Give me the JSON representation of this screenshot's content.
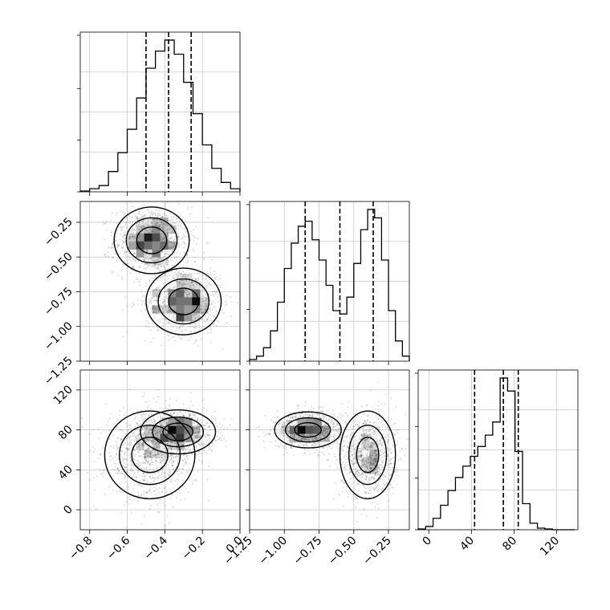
{
  "chart_data": [
    {
      "type": "histogram",
      "panel": "param-1-marginal",
      "x_range": [
        -0.85,
        0.0
      ],
      "x_ticks": [
        -0.8,
        -0.6,
        -0.4,
        -0.2,
        0.0
      ],
      "x_tick_labels": [
        "−0.8",
        "−0.6",
        "−0.4",
        "−0.2",
        "0.0"
      ],
      "bin_edges": [
        -0.85,
        -0.8,
        -0.75,
        -0.7,
        -0.65,
        -0.6,
        -0.55,
        -0.5,
        -0.45,
        -0.4,
        -0.35,
        -0.3,
        -0.25,
        -0.2,
        -0.15,
        -0.1,
        -0.05,
        0.0
      ],
      "counts": [
        0.005,
        0.02,
        0.04,
        0.13,
        0.25,
        0.4,
        0.6,
        0.79,
        0.9,
        0.97,
        0.88,
        0.7,
        0.5,
        0.3,
        0.15,
        0.06,
        0.02
      ],
      "quantiles": [
        -0.5,
        -0.38,
        -0.26
      ],
      "grid": true
    },
    {
      "type": "histogram",
      "panel": "param-2-marginal",
      "x_range": [
        -1.25,
        -0.1
      ],
      "x_ticks": [
        -1.25,
        -1.0,
        -0.75,
        -0.5,
        -0.25
      ],
      "x_tick_labels": [
        "−1.25",
        "−1.00",
        "−0.75",
        "−0.50",
        "−0.25"
      ],
      "bin_edges": [
        -1.25,
        -1.2,
        -1.15,
        -1.1,
        -1.05,
        -1.0,
        -0.95,
        -0.9,
        -0.85,
        -0.8,
        -0.75,
        -0.7,
        -0.65,
        -0.6,
        -0.55,
        -0.5,
        -0.45,
        -0.4,
        -0.35,
        -0.3,
        -0.25,
        -0.2,
        -0.15,
        -0.1
      ],
      "counts": [
        0.01,
        0.03,
        0.08,
        0.18,
        0.35,
        0.55,
        0.7,
        0.8,
        0.83,
        0.72,
        0.6,
        0.45,
        0.3,
        0.28,
        0.38,
        0.58,
        0.78,
        0.9,
        0.85,
        0.6,
        0.3,
        0.12,
        0.03
      ],
      "quantiles": [
        -0.85,
        -0.6,
        -0.36
      ],
      "grid": true
    },
    {
      "type": "histogram",
      "panel": "param-3-marginal",
      "x_range": [
        -10,
        140
      ],
      "x_ticks": [
        0,
        40,
        80,
        120
      ],
      "x_tick_labels": [
        "0",
        "40",
        "80",
        "120"
      ],
      "bin_edges": [
        -10,
        -3,
        4,
        11,
        18,
        25,
        32,
        39,
        46,
        53,
        60,
        67,
        74,
        81,
        88,
        95,
        102,
        109,
        116,
        123,
        130,
        137
      ],
      "counts": [
        0.005,
        0.02,
        0.07,
        0.15,
        0.24,
        0.32,
        0.39,
        0.45,
        0.51,
        0.58,
        0.66,
        0.93,
        0.85,
        0.48,
        0.16,
        0.04,
        0.01,
        0.005,
        0.0,
        0.0,
        0.0
      ],
      "quantiles": [
        43,
        70,
        84
      ],
      "grid": true
    },
    {
      "type": "scatter",
      "panel": "param-1-vs-param-2",
      "x_range": [
        -0.85,
        0.0
      ],
      "y_range": [
        -1.25,
        -0.1
      ],
      "y_ticks": [
        -1.25,
        -1.0,
        -0.75,
        -0.5,
        -0.25
      ],
      "y_tick_labels": [
        "−1.25",
        "−1.00",
        "−0.75",
        "−0.50",
        "−0.25"
      ],
      "clusters": [
        {
          "center": [
            -0.47,
            -0.38
          ],
          "spread": [
            0.1,
            0.12
          ]
        },
        {
          "center": [
            -0.3,
            -0.82
          ],
          "spread": [
            0.1,
            0.12
          ]
        }
      ],
      "contours": "density levels with greyscale 2D histogram",
      "grid": true
    },
    {
      "type": "scatter",
      "panel": "param-1-vs-param-3",
      "x_range": [
        -0.85,
        0.0
      ],
      "y_range": [
        -20,
        140
      ],
      "y_ticks": [
        0,
        40,
        80,
        120
      ],
      "y_tick_labels": [
        "0",
        "40",
        "80",
        "120"
      ],
      "clusters": [
        {
          "center": [
            -0.33,
            78
          ],
          "spread": [
            0.1,
            11
          ]
        },
        {
          "center": [
            -0.48,
            55
          ],
          "spread": [
            0.12,
            22
          ]
        }
      ],
      "contours": "density levels with greyscale 2D histogram",
      "grid": true
    },
    {
      "type": "scatter",
      "panel": "param-2-vs-param-3",
      "x_range": [
        -1.25,
        -0.1
      ],
      "y_range": [
        -20,
        140
      ],
      "clusters": [
        {
          "center": [
            -0.83,
            80
          ],
          "spread": [
            0.12,
            9
          ]
        },
        {
          "center": [
            -0.4,
            55
          ],
          "spread": [
            0.1,
            22
          ]
        }
      ],
      "contours": "density levels with greyscale 2D histogram",
      "grid": true
    }
  ]
}
